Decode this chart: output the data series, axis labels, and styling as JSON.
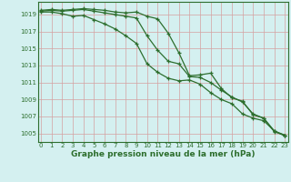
{
  "x": [
    0,
    1,
    2,
    3,
    4,
    5,
    6,
    7,
    8,
    9,
    10,
    11,
    12,
    13,
    14,
    15,
    16,
    17,
    18,
    19,
    20,
    21,
    22,
    23
  ],
  "line1": [
    1019.5,
    1019.6,
    1019.5,
    1019.6,
    1019.7,
    1019.6,
    1019.5,
    1019.3,
    1019.2,
    1019.3,
    1018.8,
    1018.5,
    1016.8,
    1014.5,
    1011.8,
    1011.9,
    1012.1,
    1010.3,
    1009.2,
    1008.8,
    1007.2,
    1006.8,
    1005.3,
    1004.8
  ],
  "line2": [
    1019.4,
    1019.5,
    1019.4,
    1019.5,
    1019.6,
    1019.4,
    1019.2,
    1019.0,
    1018.8,
    1018.6,
    1016.5,
    1014.8,
    1013.5,
    1013.2,
    1011.7,
    1011.6,
    1011.0,
    1010.1,
    1009.3,
    1008.7,
    1007.3,
    1006.8,
    1005.2,
    1004.8
  ],
  "line3": [
    1019.3,
    1019.3,
    1019.1,
    1018.8,
    1018.9,
    1018.4,
    1017.9,
    1017.3,
    1016.5,
    1015.6,
    1013.2,
    1012.2,
    1011.5,
    1011.2,
    1011.3,
    1010.8,
    1009.8,
    1009.0,
    1008.5,
    1007.3,
    1006.8,
    1006.5,
    1005.3,
    1004.7
  ],
  "bg_color": "#d4f0f0",
  "line_color": "#2d6e2d",
  "xlabel": "Graphe pression niveau de la mer (hPa)",
  "ylim": [
    1004.0,
    1020.5
  ],
  "yticks": [
    1005,
    1007,
    1009,
    1011,
    1013,
    1015,
    1017,
    1019
  ],
  "xtick_labels": [
    "0",
    "1",
    "2",
    "3",
    "4",
    "5",
    "6",
    "7",
    "8",
    "9",
    "10",
    "11",
    "12",
    "13",
    "14",
    "15",
    "16",
    "17",
    "18",
    "19",
    "20",
    "21",
    "22",
    "23"
  ],
  "marker": "+",
  "markersize": 3.5,
  "linewidth": 0.9,
  "tick_fontsize": 5.0,
  "xlabel_fontsize": 6.5
}
